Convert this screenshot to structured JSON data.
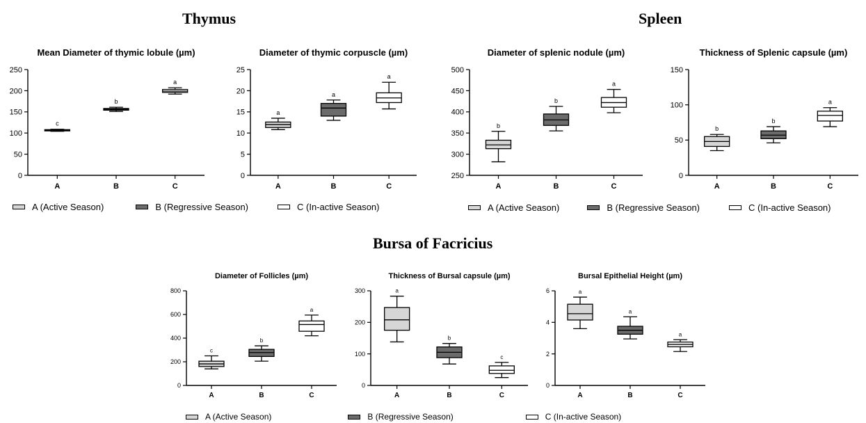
{
  "sections": {
    "thymus": "Thymus",
    "spleen": "Spleen",
    "bursa": "Bursa of Facricius"
  },
  "legend": {
    "a": "A (Active Season)",
    "b": "B (Regressive Season)",
    "c": "C (In-active Season)"
  },
  "colors": {
    "A": "#d6d6d6",
    "B": "#6b6b6b",
    "C": "#ffffff"
  },
  "chart_data": [
    {
      "id": "thymic-lobule",
      "type": "box",
      "title": "Mean Diameter of thymic lobule (µm)",
      "categories": [
        "A",
        "B",
        "C"
      ],
      "ylim": [
        0,
        250
      ],
      "yticks": [
        0,
        50,
        100,
        150,
        200,
        250
      ],
      "boxes": [
        {
          "min": 104,
          "q1": 105,
          "median": 106,
          "q3": 108,
          "max": 109,
          "label": "c"
        },
        {
          "min": 151,
          "q1": 154,
          "median": 156,
          "q3": 158,
          "max": 161,
          "label": "b"
        },
        {
          "min": 192,
          "q1": 196,
          "median": 199,
          "q3": 203,
          "max": 207,
          "label": "a"
        }
      ]
    },
    {
      "id": "thymic-corpuscle",
      "type": "box",
      "title": "Diameter of thymic corpuscle (µm)",
      "categories": [
        "A",
        "B",
        "C"
      ],
      "ylim": [
        0,
        25
      ],
      "yticks": [
        0,
        5,
        10,
        15,
        20,
        25
      ],
      "boxes": [
        {
          "min": 10.8,
          "q1": 11.3,
          "median": 12.0,
          "q3": 12.6,
          "max": 13.5,
          "label": "a"
        },
        {
          "min": 13.0,
          "q1": 14.0,
          "median": 15.9,
          "q3": 17.0,
          "max": 17.8,
          "label": "a"
        },
        {
          "min": 15.7,
          "q1": 17.2,
          "median": 18.3,
          "q3": 19.5,
          "max": 22.0,
          "label": "a"
        }
      ]
    },
    {
      "id": "splenic-nodule",
      "type": "box",
      "title": "Diameter of splenic nodule (µm)",
      "categories": [
        "A",
        "B",
        "C"
      ],
      "ylim": [
        250,
        500
      ],
      "yticks": [
        250,
        300,
        350,
        400,
        450,
        500
      ],
      "boxes": [
        {
          "min": 282,
          "q1": 313,
          "median": 322,
          "q3": 333,
          "max": 354,
          "label": "b"
        },
        {
          "min": 355,
          "q1": 368,
          "median": 381,
          "q3": 395,
          "max": 413,
          "label": "b"
        },
        {
          "min": 398,
          "q1": 411,
          "median": 422,
          "q3": 434,
          "max": 453,
          "label": "a"
        }
      ]
    },
    {
      "id": "splenic-capsule",
      "type": "box",
      "title": "Thickness of Splenic capsule (µm)",
      "categories": [
        "A",
        "B",
        "C"
      ],
      "ylim": [
        0,
        150
      ],
      "yticks": [
        0,
        50,
        100,
        150
      ],
      "boxes": [
        {
          "min": 35,
          "q1": 41,
          "median": 48,
          "q3": 55,
          "max": 58,
          "label": "b"
        },
        {
          "min": 46,
          "q1": 52,
          "median": 57,
          "q3": 63,
          "max": 69,
          "label": "b"
        },
        {
          "min": 69,
          "q1": 77,
          "median": 85,
          "q3": 91,
          "max": 96,
          "label": "a"
        }
      ]
    },
    {
      "id": "follicles",
      "type": "box",
      "title": "Diameter of Follicles (µm)",
      "categories": [
        "A",
        "B",
        "C"
      ],
      "ylim": [
        0,
        800
      ],
      "yticks": [
        0,
        200,
        400,
        600,
        800
      ],
      "boxes": [
        {
          "min": 140,
          "q1": 160,
          "median": 182,
          "q3": 205,
          "max": 250,
          "label": "c"
        },
        {
          "min": 205,
          "q1": 245,
          "median": 278,
          "q3": 305,
          "max": 335,
          "label": "b"
        },
        {
          "min": 420,
          "q1": 458,
          "median": 515,
          "q3": 545,
          "max": 595,
          "label": "a"
        }
      ]
    },
    {
      "id": "bursal-capsule",
      "type": "box",
      "title": "Thickness of Bursal capsule (µm)",
      "categories": [
        "A",
        "B",
        "C"
      ],
      "ylim": [
        0,
        300
      ],
      "yticks": [
        0,
        100,
        200,
        300
      ],
      "boxes": [
        {
          "min": 138,
          "q1": 175,
          "median": 208,
          "q3": 247,
          "max": 283,
          "label": "a"
        },
        {
          "min": 68,
          "q1": 88,
          "median": 105,
          "q3": 122,
          "max": 133,
          "label": "b"
        },
        {
          "min": 25,
          "q1": 38,
          "median": 48,
          "q3": 62,
          "max": 73,
          "label": "c"
        }
      ]
    },
    {
      "id": "bursal-epithelial",
      "type": "box",
      "title": "Bursal Epithelial Height (µm)",
      "categories": [
        "A",
        "B",
        "C"
      ],
      "ylim": [
        0,
        6
      ],
      "yticks": [
        0,
        2,
        4,
        6
      ],
      "boxes": [
        {
          "min": 3.6,
          "q1": 4.15,
          "median": 4.55,
          "q3": 5.15,
          "max": 5.6,
          "label": "a"
        },
        {
          "min": 2.95,
          "q1": 3.25,
          "median": 3.5,
          "q3": 3.75,
          "max": 4.35,
          "label": "a"
        },
        {
          "min": 2.15,
          "q1": 2.45,
          "median": 2.6,
          "q3": 2.75,
          "max": 2.9,
          "label": "a"
        }
      ]
    }
  ]
}
